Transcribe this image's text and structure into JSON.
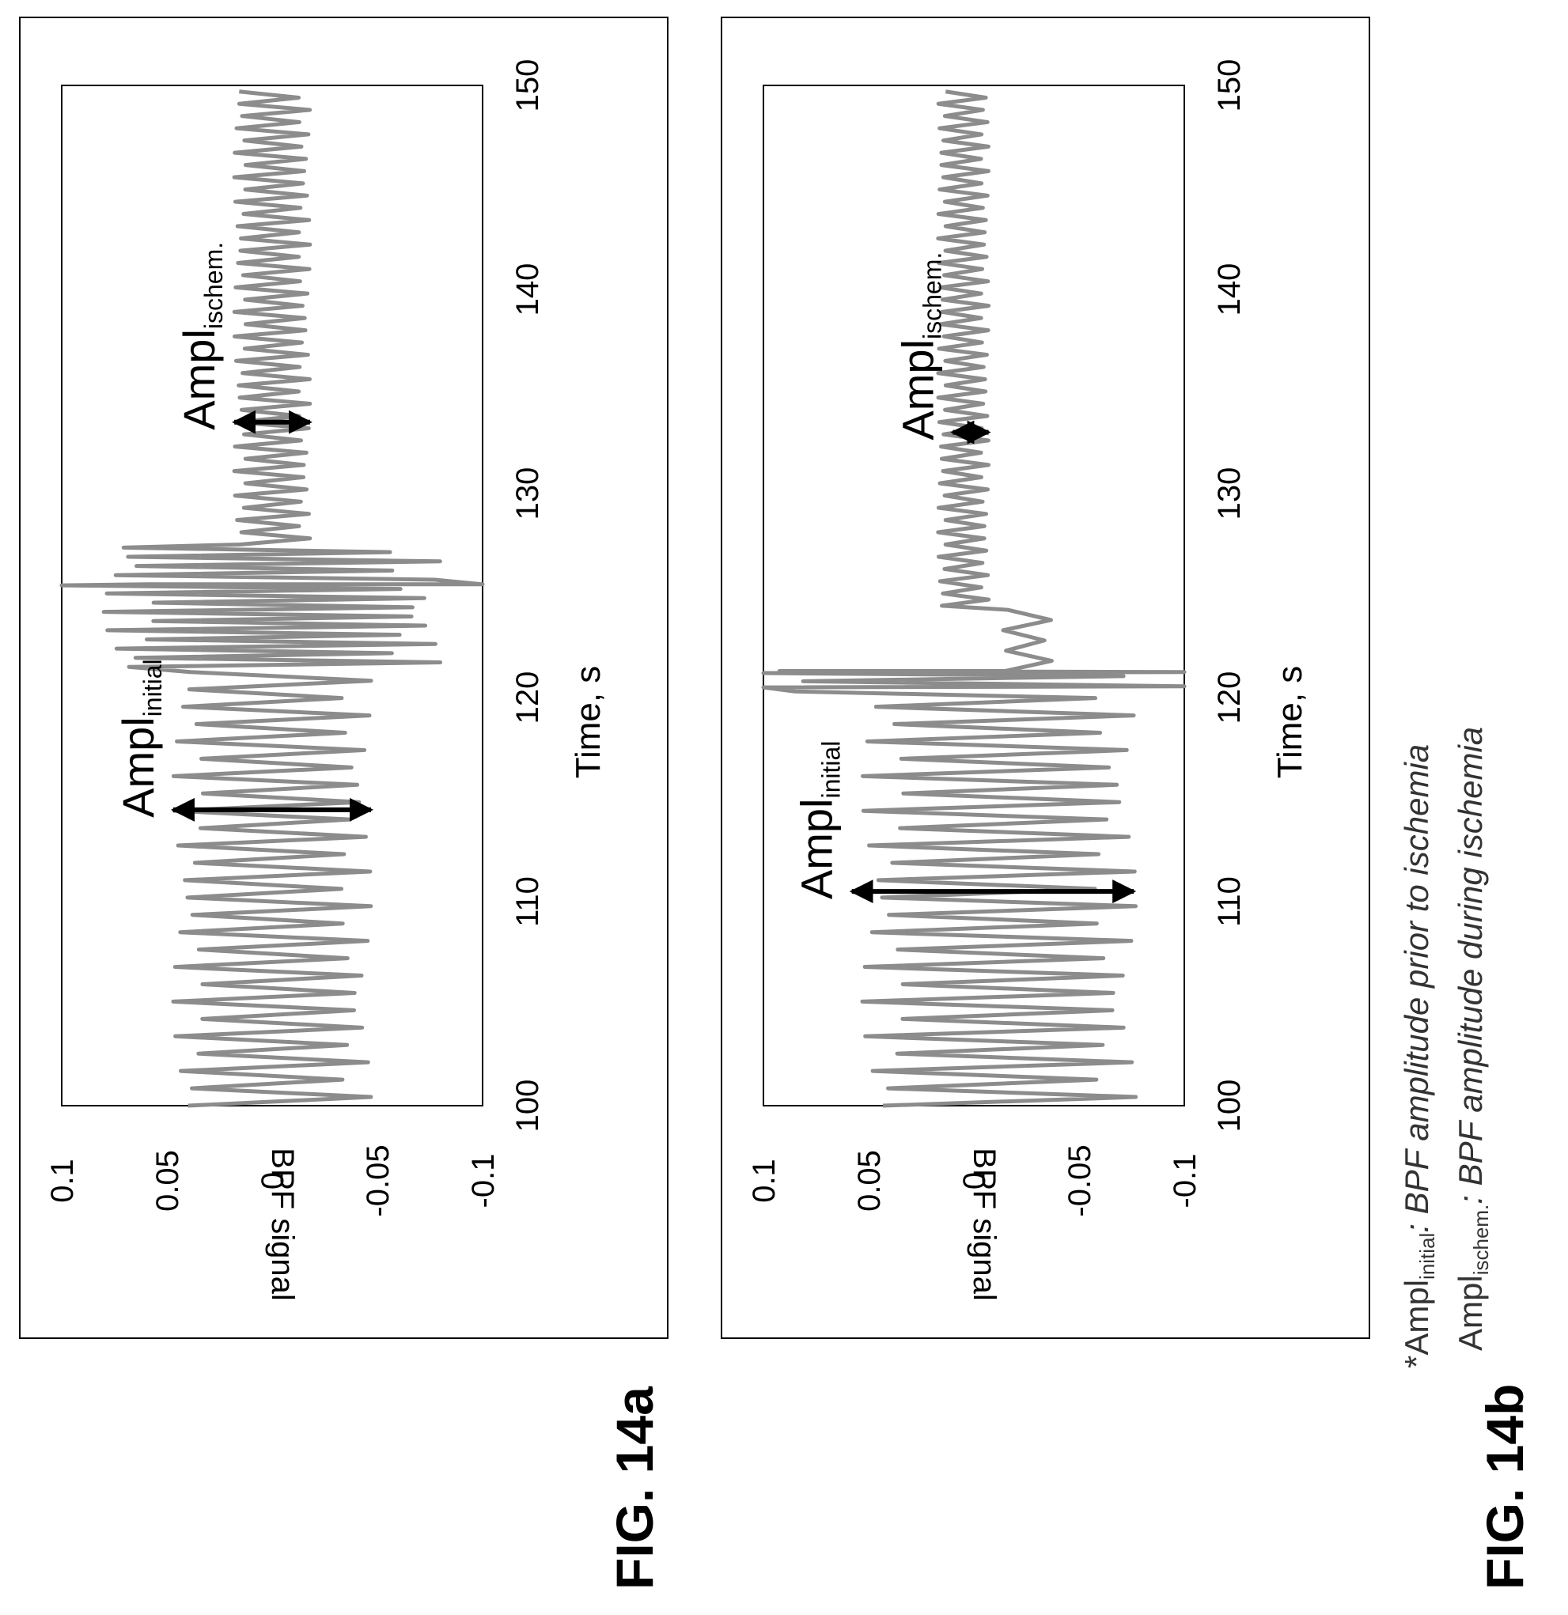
{
  "figure_labels": [
    "FIG. 14a",
    "FIG. 14b"
  ],
  "footnote": {
    "line1": {
      "star": "*",
      "main": "Ampl",
      "sub": "initial",
      "desc": ": BPF amplitude prior to ischemia"
    },
    "line2": {
      "main": "Ampl",
      "sub": "ischem.",
      "desc": ": BPF amplitude during ischemia"
    }
  },
  "colors": {
    "signal": "#8c8c8c",
    "annotation": "#000000",
    "frame": "#000000"
  },
  "chart_data": [
    {
      "panel": "FIG. 14a",
      "type": "line",
      "xlabel": "Time, s",
      "ylabel": "BPF signal",
      "xlim": [
        100,
        150
      ],
      "ylim": [
        -0.1,
        0.1
      ],
      "xticks": [
        "100",
        "110",
        "120",
        "130",
        "140",
        "150"
      ],
      "yticks": [
        "0.1",
        "0.05",
        "0",
        "-0.05",
        "-0.1"
      ],
      "grid": false,
      "series": [
        {
          "segments": [
            {
              "t_start": 100,
              "t_end": 121.5,
              "amplitude": 0.047,
              "offset": 0.0,
              "period": 0.85
            },
            {
              "t_start": 121.5,
              "t_end": 127.5,
              "amplitude": 0.08,
              "offset": 0.0,
              "period": 0.45,
              "spikes": [
                {
                  "t": 125.5,
                  "min": -0.1,
                  "max": 0.1
                }
              ]
            },
            {
              "t_start": 127.5,
              "t_end": 150,
              "amplitude": 0.018,
              "offset": 0.0,
              "period": 0.6
            }
          ]
        }
      ],
      "annotations": [
        {
          "label_main": "Ampl",
          "label_sub": "initial",
          "t": 114.5,
          "low": -0.047,
          "high": 0.047
        },
        {
          "label_main": "Ampl",
          "label_sub": "ischem.",
          "t": 133.5,
          "low": -0.018,
          "high": 0.018
        }
      ]
    },
    {
      "panel": "FIG. 14b",
      "type": "line",
      "xlabel": "Time, s",
      "ylabel": "BPF signal",
      "xlim": [
        100,
        150
      ],
      "ylim": [
        -0.1,
        0.1
      ],
      "xticks": [
        "100",
        "110",
        "120",
        "130",
        "140",
        "150"
      ],
      "yticks": [
        "0.1",
        "0.05",
        "0",
        "-0.05",
        "-0.1"
      ],
      "grid": false,
      "series": [
        {
          "segments": [
            {
              "t_start": 100,
              "t_end": 120.3,
              "amplitude": 0.065,
              "offset": -0.012,
              "period": 0.85
            },
            {
              "t_start": 120.3,
              "t_end": 121.3,
              "amplitude": 0.1,
              "offset": 0.0,
              "period": 0.5,
              "spikes": [
                {
                  "t": 120.5,
                  "min": -0.1,
                  "max": 0.1
                },
                {
                  "t": 121.2,
                  "min": -0.1,
                  "max": 0.1
                }
              ]
            },
            {
              "t_start": 121.3,
              "t_end": 124.5,
              "amplitude": 0.012,
              "offset": -0.025,
              "period": 1.0
            },
            {
              "t_start": 124.5,
              "t_end": 150,
              "amplitude": 0.012,
              "offset": 0.005,
              "period": 0.6
            }
          ]
        }
      ],
      "annotations": [
        {
          "label_main": "Ampl",
          "label_sub": "initial",
          "t": 110.5,
          "low": -0.076,
          "high": 0.058
        },
        {
          "label_main": "Ampl",
          "label_sub": "ischem.",
          "t": 133.0,
          "low": -0.007,
          "high": 0.01
        }
      ]
    }
  ]
}
